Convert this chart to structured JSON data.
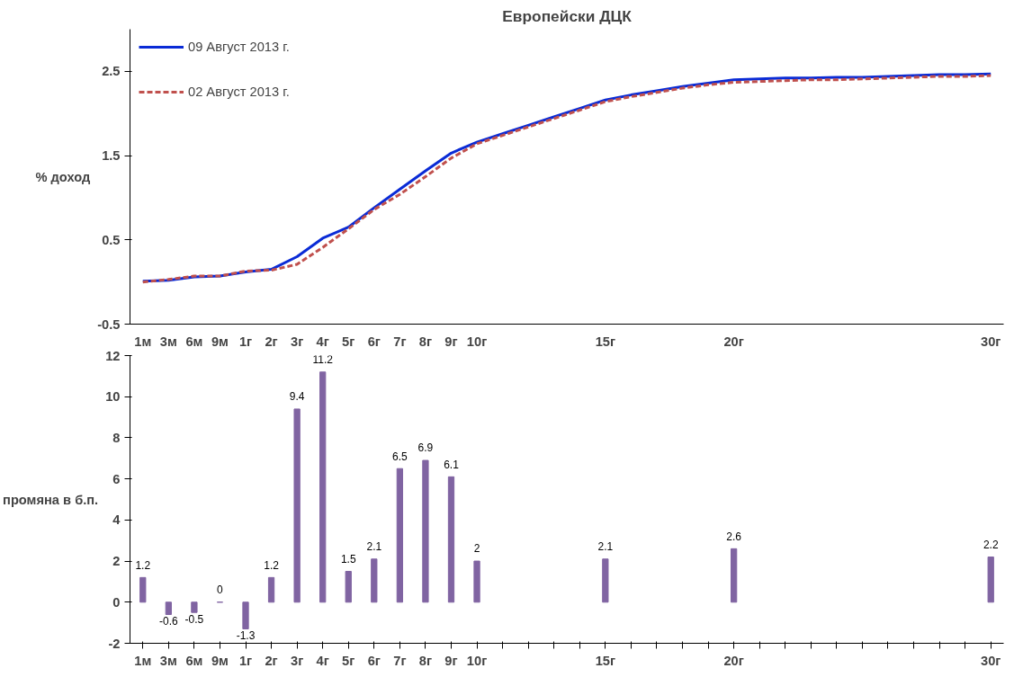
{
  "chart_data": [
    {
      "type": "line",
      "title": "Европейски ДЦК",
      "ylabel": "% доход",
      "categories": [
        "1м",
        "3м",
        "6м",
        "9м",
        "1г",
        "2г",
        "3г",
        "4г",
        "5г",
        "6г",
        "7г",
        "8г",
        "9г",
        "10г",
        null,
        null,
        null,
        null,
        "15г",
        null,
        null,
        null,
        null,
        "20г",
        null,
        null,
        null,
        null,
        null,
        null,
        null,
        null,
        null,
        "30г"
      ],
      "ylim": [
        -0.5,
        3
      ],
      "yticks": [
        -0.5,
        0.5,
        1.5,
        2.5
      ],
      "grid": false,
      "legend": "top left",
      "marker": "none",
      "series": [
        {
          "name": "09 Август 2013 г.",
          "color": "#0a2bd6",
          "line_style": "solid",
          "values": [
            0.01,
            0.02,
            0.06,
            0.07,
            0.12,
            0.15,
            0.3,
            0.52,
            0.65,
            0.88,
            1.1,
            1.32,
            1.53,
            1.66,
            1.76,
            1.86,
            1.96,
            2.06,
            2.16,
            2.22,
            2.27,
            2.32,
            2.36,
            2.4,
            2.41,
            2.42,
            2.42,
            2.43,
            2.43,
            2.44,
            2.45,
            2.46,
            2.46,
            2.47
          ]
        },
        {
          "name": "02 Август 2013 г.",
          "color": "#c0504d",
          "line_style": "dashed",
          "values": [
            0.0,
            0.03,
            0.07,
            0.07,
            0.13,
            0.14,
            0.21,
            0.41,
            0.63,
            0.86,
            1.04,
            1.25,
            1.47,
            1.64,
            1.74,
            1.84,
            1.94,
            2.04,
            2.14,
            2.2,
            2.25,
            2.3,
            2.34,
            2.37,
            2.38,
            2.39,
            2.4,
            2.4,
            2.41,
            2.42,
            2.43,
            2.44,
            2.44,
            2.45
          ]
        }
      ]
    },
    {
      "type": "bar",
      "ylabel": "промяна в б.п.",
      "categories": [
        "1м",
        "3м",
        "6м",
        "9м",
        "1г",
        "2г",
        "3г",
        "4г",
        "5г",
        "6г",
        "7г",
        "8г",
        "9г",
        "10г",
        null,
        null,
        null,
        null,
        "15г",
        null,
        null,
        null,
        null,
        "20г",
        null,
        null,
        null,
        null,
        null,
        null,
        null,
        null,
        null,
        "30г"
      ],
      "ylim": [
        -2,
        12
      ],
      "yticks": [
        -2,
        0,
        2,
        4,
        6,
        8,
        10,
        12
      ],
      "grid": false,
      "data_labels": true,
      "color": "#8064a2",
      "values": [
        1.2,
        -0.6,
        -0.5,
        0,
        -1.3,
        1.2,
        9.4,
        11.2,
        1.5,
        2.1,
        6.5,
        6.9,
        6.1,
        2,
        null,
        null,
        null,
        null,
        2.1,
        null,
        null,
        null,
        null,
        2.6,
        null,
        null,
        null,
        null,
        null,
        null,
        null,
        null,
        null,
        2.2
      ]
    }
  ]
}
